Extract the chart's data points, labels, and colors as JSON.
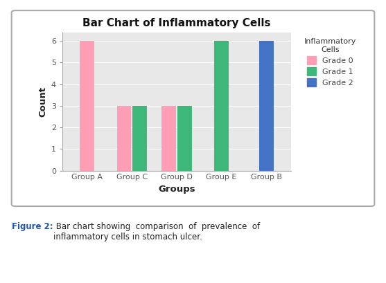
{
  "title": "Bar Chart of Inflammatory Cells",
  "xlabel": "Groups",
  "ylabel": "Count",
  "legend_title": "Inflammatory\nCells",
  "groups": [
    "Group A",
    "Group C",
    "Group D",
    "Group E",
    "Group B"
  ],
  "bars": [
    {
      "group": "Group A",
      "grade": "Grade 0",
      "value": 6,
      "color": "#FF9EB5"
    },
    {
      "group": "Group C",
      "grade": "Grade 0",
      "value": 3,
      "color": "#FF9EB5"
    },
    {
      "group": "Group C",
      "grade": "Grade 1",
      "value": 3,
      "color": "#3DB87A"
    },
    {
      "group": "Group D",
      "grade": "Grade 0",
      "value": 3,
      "color": "#FF9EB5"
    },
    {
      "group": "Group D",
      "grade": "Grade 1",
      "value": 3,
      "color": "#3DB87A"
    },
    {
      "group": "Group E",
      "grade": "Grade 1",
      "value": 6,
      "color": "#3DB87A"
    },
    {
      "group": "Group B",
      "grade": "Grade 2",
      "value": 6,
      "color": "#4472C4"
    }
  ],
  "grade_colors": {
    "Grade 0": "#FF9EB5",
    "Grade 1": "#3DB87A",
    "Grade 2": "#4472C4"
  },
  "ylim": [
    0,
    6.4
  ],
  "yticks": [
    0,
    1,
    2,
    3,
    4,
    5,
    6
  ],
  "plot_bg_color": "#E8E8E8",
  "outer_box_bg": "#FFFFFF",
  "fig_bg": "#FFFFFF",
  "bar_width": 0.32,
  "title_fontsize": 11,
  "axis_label_fontsize": 9.5,
  "tick_fontsize": 8,
  "legend_fontsize": 8,
  "caption": "Figure 2:  Bar chart showing  comparison  of  prevalence  of\ninflammatory cells in stomach ulcer."
}
